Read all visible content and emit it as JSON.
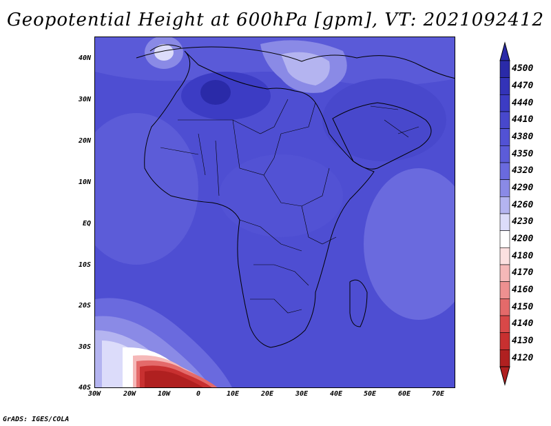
{
  "title": "Geopotential Height at 600hPa [gpm], VT: 2021092412",
  "footer": "GrADS: IGES/COLA",
  "axes": {
    "y_labels": [
      "40N",
      "30N",
      "20N",
      "10N",
      "EQ",
      "10S",
      "20S",
      "30S",
      "40S"
    ],
    "x_labels": [
      "30W",
      "20W",
      "10W",
      "0",
      "10E",
      "20E",
      "30E",
      "40E",
      "50E",
      "60E",
      "70E"
    ]
  },
  "colorbar": {
    "levels": [
      "4500",
      "4470",
      "4440",
      "4410",
      "4380",
      "4350",
      "4320",
      "4290",
      "4260",
      "4230",
      "4200",
      "4180",
      "4170",
      "4160",
      "4150",
      "4140",
      "4130",
      "4120"
    ],
    "colors": [
      "#2a2aa8",
      "#3333b8",
      "#3c3cc4",
      "#4848cc",
      "#5252d4",
      "#5c5cd8",
      "#6a6ade",
      "#8a8ae6",
      "#b4b4f0",
      "#dcdcfa",
      "#ffffff",
      "#fce0e0",
      "#f5b8b8",
      "#ee9090",
      "#e46a6a",
      "#d84848",
      "#c83030",
      "#b02020"
    ]
  },
  "colors": {
    "field_base": "#4e4ed2"
  }
}
